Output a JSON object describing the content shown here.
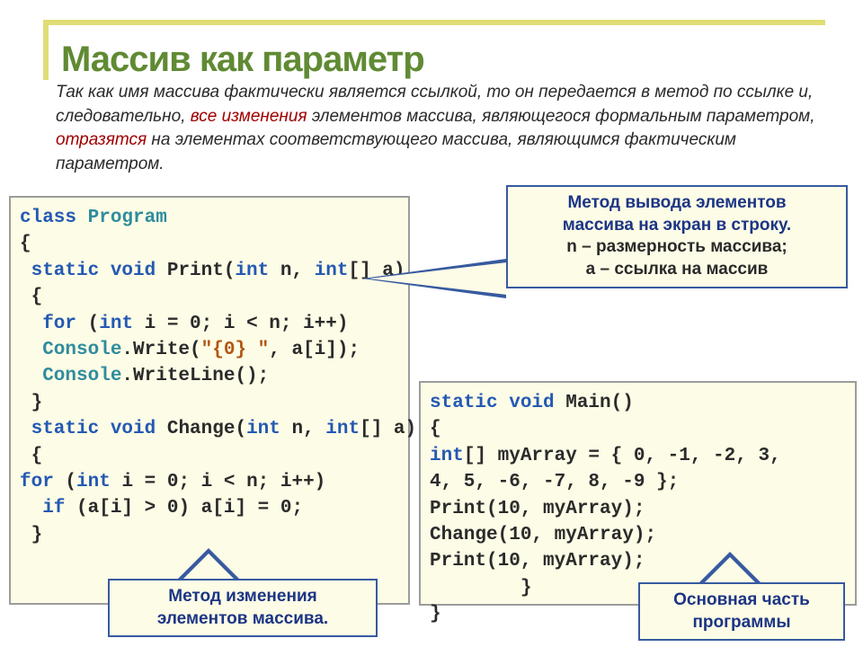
{
  "title": "Массив как параметр",
  "intro": {
    "pre": "Так как имя массива фактически является ссылкой, то он передается в метод по ссылке и, следовательно, ",
    "hl1": "все изменения",
    "mid": " элементов массива, являющегося формальным параметром, ",
    "hl2": "отразятся",
    "post": " на элементах соответствующего массива, являющимся фактическим параметром."
  },
  "code1": {
    "l1a": "class",
    "l1b": " Program",
    "l2": "{",
    "l3a": " static void",
    "l3b": " Print(",
    "l3c": "int",
    "l3d": " n, ",
    "l3e": "int",
    "l3f": "[] a)",
    "l4": " {",
    "l5a": "  for",
    "l5b": " (",
    "l5c": "int",
    "l5d": " i = 0; i < n; i++)",
    "l6a": "  Console",
    "l6b": ".Write(",
    "l6c": "\"{0} \"",
    "l6d": ", a[i]);",
    "l7a": "  Console",
    "l7b": ".WriteLine();",
    "l8": " }",
    "l9a": " static void",
    "l9b": " Change(",
    "l9c": "int",
    "l9d": " n, ",
    "l9e": "int",
    "l9f": "[] a)",
    "l10": " {",
    "l11a": "for",
    "l11b": " (",
    "l11c": "int",
    "l11d": " i = 0; i < n; i++)",
    "l12a": "  if",
    "l12b": " (a[i] > 0) a[i] = 0;",
    "l13": " }"
  },
  "code2": {
    "l1a": "static void",
    "l1b": " Main()",
    "l2": "{",
    "l3a": "int",
    "l3b": "[] myArray = { 0, -1, -2, 3,",
    "l4": "4, 5, -6, -7, 8, -9 };",
    "l5": "Print(10, myArray);",
    "l6": "Change(10, myArray);",
    "l7": "Print(10, myArray);",
    "l8": "        }",
    "l9": "}"
  },
  "callout1": {
    "l1": "Метод вывода элементов",
    "l2": "массива  на экран в строку.",
    "l3": "n – размерность массива;",
    "l4": "а – ссылка на массив"
  },
  "callout2": {
    "l1": "Метод изменения",
    "l2": "элементов массива."
  },
  "callout3": {
    "l1": "Основная часть",
    "l2": "программы"
  },
  "colors": {
    "accent_border": "#e0dd77",
    "title_color": "#608a33",
    "hl_color": "#a00000",
    "code_bg": "#fdfce6",
    "code_border": "#9c9c9c",
    "callout_border": "#375aa0",
    "callout_text": "#1c3585",
    "keyword": "#2459b3",
    "class": "#2f8c9e",
    "string": "#b25610"
  }
}
